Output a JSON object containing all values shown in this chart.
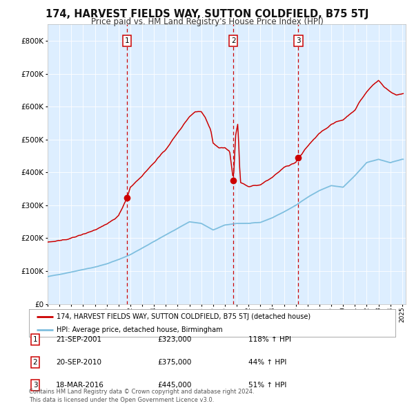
{
  "title": "174, HARVEST FIELDS WAY, SUTTON COLDFIELD, B75 5TJ",
  "subtitle": "Price paid vs. HM Land Registry's House Price Index (HPI)",
  "background_color": "#ffffff",
  "plot_bg_color": "#ddeeff",
  "legend_line1": "174, HARVEST FIELDS WAY, SUTTON COLDFIELD, B75 5TJ (detached house)",
  "legend_line2": "HPI: Average price, detached house, Birmingham",
  "table_rows": [
    {
      "num": "1",
      "date": "21-SEP-2001",
      "price": "£323,000",
      "change": "118% ↑ HPI"
    },
    {
      "num": "2",
      "date": "20-SEP-2010",
      "price": "£375,000",
      "change": "44% ↑ HPI"
    },
    {
      "num": "3",
      "date": "18-MAR-2016",
      "price": "£445,000",
      "change": "51% ↑ HPI"
    }
  ],
  "footer": "Contains HM Land Registry data © Crown copyright and database right 2024.\nThis data is licensed under the Open Government Licence v3.0.",
  "sale_dates": [
    2001.72,
    2010.72,
    2016.21
  ],
  "sale_prices": [
    323000,
    375000,
    445000
  ],
  "hpi_color": "#7fbfdf",
  "price_color": "#cc0000",
  "vline_color": "#cc0000",
  "ylim": [
    0,
    850000
  ],
  "yticks": [
    0,
    100000,
    200000,
    300000,
    400000,
    500000,
    600000,
    700000,
    800000
  ],
  "xlim_start": 1995,
  "xlim_end": 2025.3,
  "hpi_key_years": [
    1995,
    1996,
    1997,
    1998,
    1999,
    2000,
    2001,
    2002,
    2003,
    2004,
    2005,
    2006,
    2007,
    2008,
    2009,
    2010,
    2011,
    2012,
    2013,
    2014,
    2015,
    2016,
    2017,
    2018,
    2019,
    2020,
    2021,
    2022,
    2023,
    2024,
    2025
  ],
  "hpi_key_vals": [
    83000,
    90000,
    97000,
    105000,
    112000,
    122000,
    135000,
    150000,
    170000,
    190000,
    210000,
    230000,
    250000,
    245000,
    225000,
    240000,
    245000,
    245000,
    248000,
    262000,
    280000,
    300000,
    325000,
    345000,
    360000,
    355000,
    390000,
    430000,
    440000,
    430000,
    440000
  ],
  "prop_key_years": [
    1995,
    1996,
    1997,
    1998,
    1999,
    2000,
    2001,
    2001.72,
    2002,
    2003,
    2004,
    2005,
    2006,
    2007,
    2007.5,
    2008.0,
    2008.3,
    2008.8,
    2009.0,
    2009.5,
    2010.0,
    2010.4,
    2010.72,
    2010.9,
    2011.1,
    2011.3,
    2011.8,
    2012,
    2013,
    2014,
    2015,
    2016.0,
    2016.21,
    2016.5,
    2017,
    2017.5,
    2018,
    2019,
    2019.5,
    2020,
    2021,
    2021.5,
    2022,
    2022.5,
    2023,
    2023.5,
    2024,
    2024.5,
    2025
  ],
  "prop_key_vals": [
    188000,
    192000,
    200000,
    212000,
    225000,
    242000,
    268000,
    323000,
    355000,
    390000,
    430000,
    470000,
    520000,
    570000,
    585000,
    585000,
    570000,
    530000,
    490000,
    475000,
    475000,
    465000,
    375000,
    510000,
    550000,
    370000,
    360000,
    358000,
    362000,
    385000,
    415000,
    430000,
    445000,
    455000,
    480000,
    500000,
    520000,
    545000,
    555000,
    560000,
    590000,
    620000,
    645000,
    665000,
    680000,
    660000,
    645000,
    635000,
    640000
  ]
}
